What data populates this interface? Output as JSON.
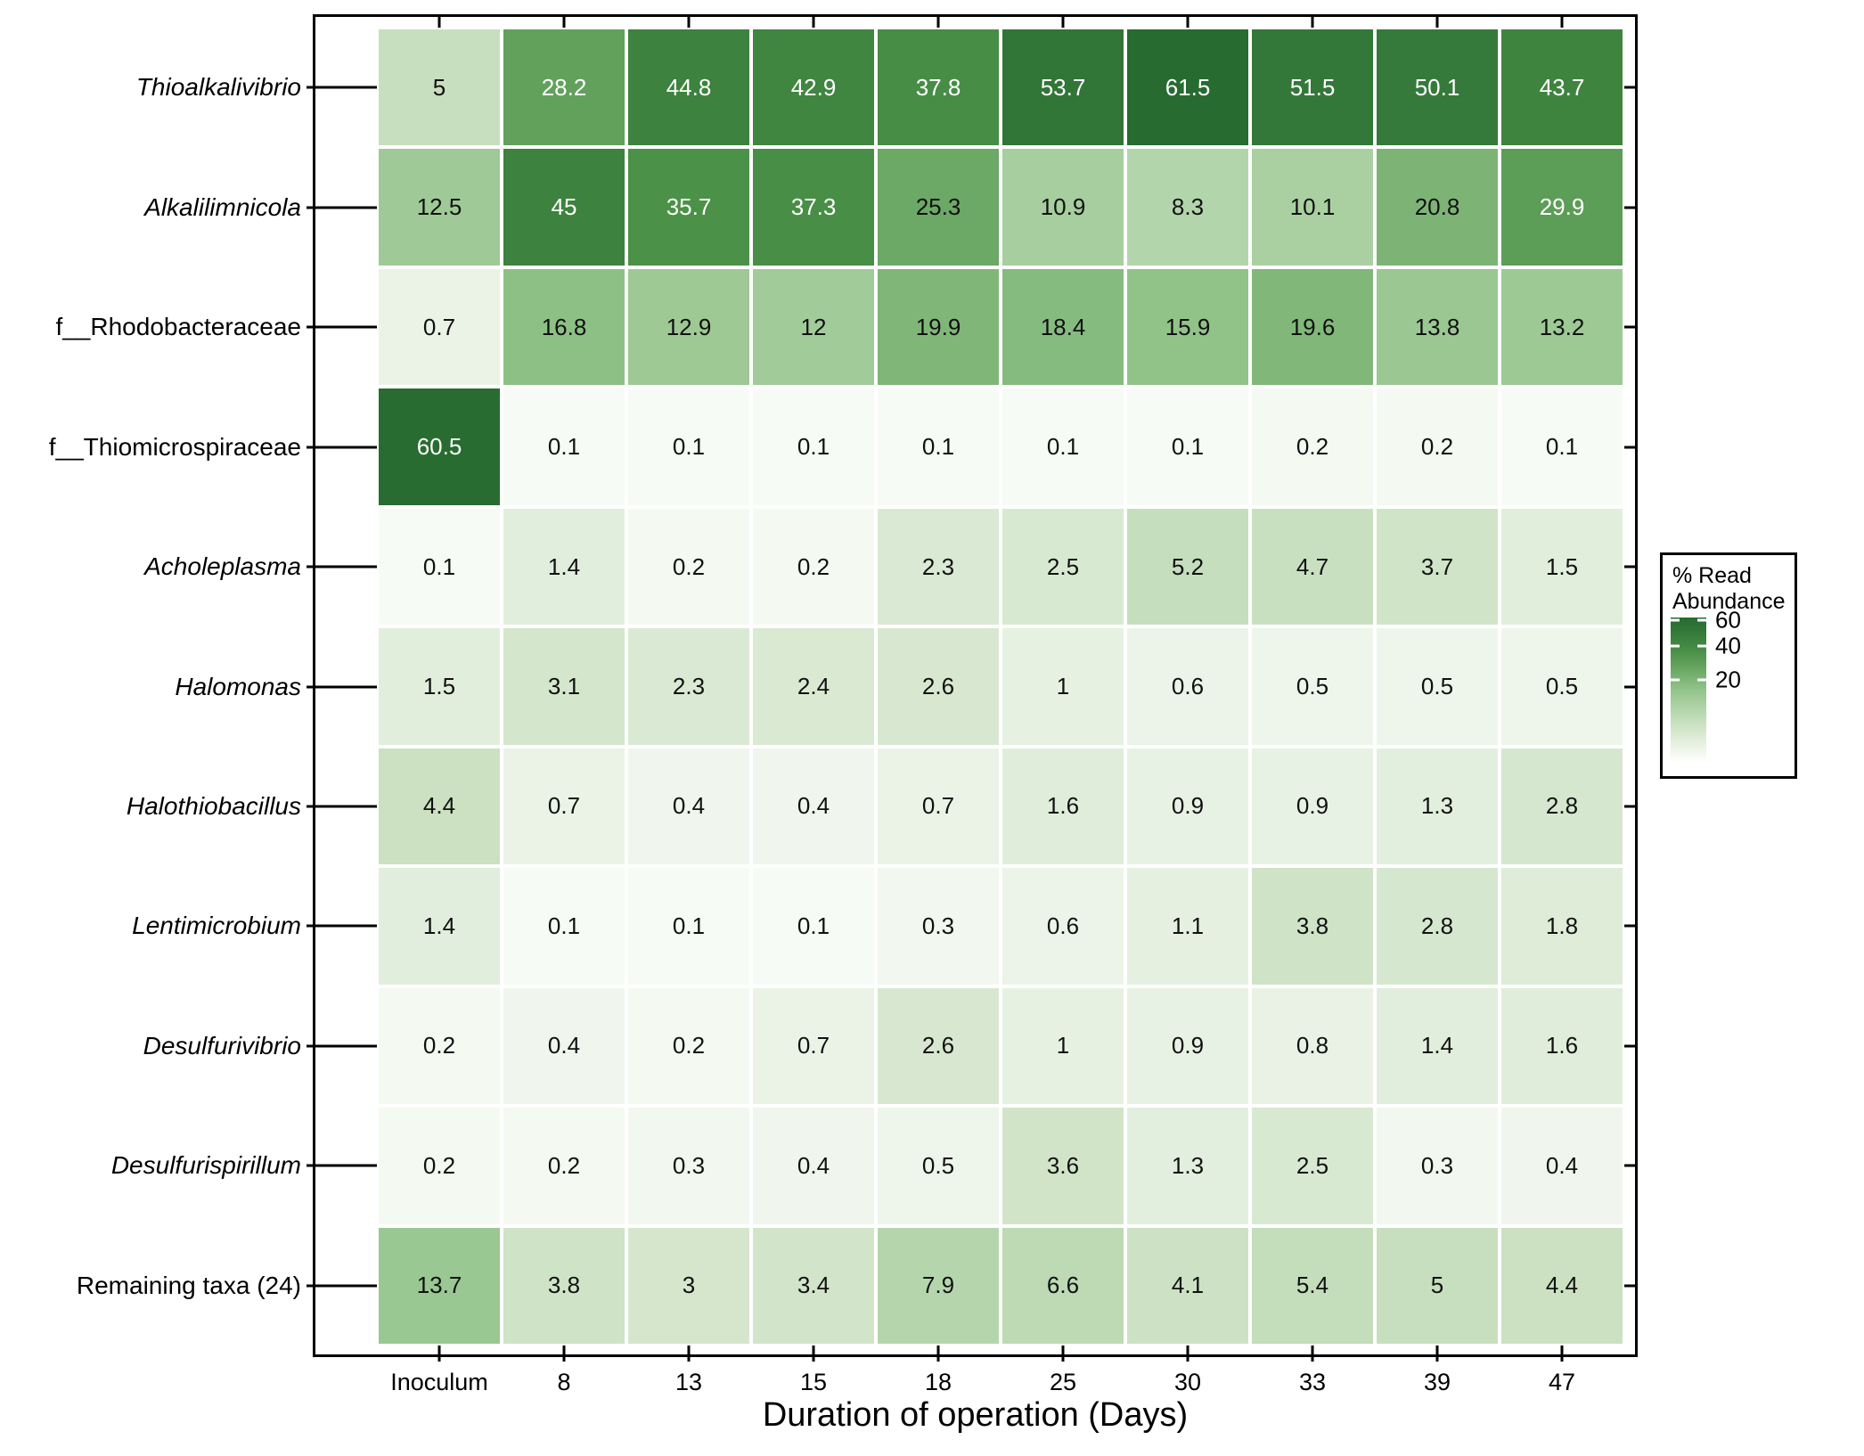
{
  "chart_data": {
    "type": "heatmap",
    "title": "",
    "xlabel": "Duration of operation (Days)",
    "ylabel": "",
    "value_unit": "% Read Abundance",
    "columns": [
      "Inoculum",
      "8",
      "13",
      "15",
      "18",
      "25",
      "30",
      "33",
      "39",
      "47"
    ],
    "rows": [
      {
        "label": "Thioalkalivibrio",
        "italic": true
      },
      {
        "label": "Alkalilimnicola",
        "italic": true
      },
      {
        "label": "f__Rhodobacteraceae",
        "italic": false
      },
      {
        "label": "f__Thiomicrospiraceae",
        "italic": false
      },
      {
        "label": "Acholeplasma",
        "italic": true
      },
      {
        "label": "Halomonas",
        "italic": true
      },
      {
        "label": "Halothiobacillus",
        "italic": true
      },
      {
        "label": "Lentimicrobium",
        "italic": true
      },
      {
        "label": "Desulfurivibrio",
        "italic": true
      },
      {
        "label": "Desulfurispirillum",
        "italic": true
      },
      {
        "label": "Remaining taxa (24)",
        "italic": false
      }
    ],
    "values": [
      [
        5,
        28.2,
        44.8,
        42.9,
        37.8,
        53.7,
        61.5,
        51.5,
        50.1,
        43.7
      ],
      [
        12.5,
        45,
        35.7,
        37.3,
        25.3,
        10.9,
        8.3,
        10.1,
        20.8,
        29.9
      ],
      [
        0.7,
        16.8,
        12.9,
        12,
        19.9,
        18.4,
        15.9,
        19.6,
        13.8,
        13.2
      ],
      [
        60.5,
        0.1,
        0.1,
        0.1,
        0.1,
        0.1,
        0.1,
        0.2,
        0.2,
        0.1
      ],
      [
        0.1,
        1.4,
        0.2,
        0.2,
        2.3,
        2.5,
        5.2,
        4.7,
        3.7,
        1.5
      ],
      [
        1.5,
        3.1,
        2.3,
        2.4,
        2.6,
        1,
        0.6,
        0.5,
        0.5,
        0.5
      ],
      [
        4.4,
        0.7,
        0.4,
        0.4,
        0.7,
        1.6,
        0.9,
        0.9,
        1.3,
        2.8
      ],
      [
        1.4,
        0.1,
        0.1,
        0.1,
        0.3,
        0.6,
        1.1,
        3.8,
        2.8,
        1.8
      ],
      [
        0.2,
        0.4,
        0.2,
        0.7,
        2.6,
        1,
        0.9,
        0.8,
        1.4,
        1.6
      ],
      [
        0.2,
        0.2,
        0.3,
        0.4,
        0.5,
        3.6,
        1.3,
        2.5,
        0.3,
        0.4
      ],
      [
        13.7,
        3.8,
        3,
        3.4,
        7.9,
        6.6,
        4.1,
        5.4,
        5,
        4.4
      ]
    ],
    "color_scale": {
      "type": "sqrt",
      "vmax": 62,
      "ramp": [
        [
          0,
          "#ffffff"
        ],
        [
          0.25,
          "#cfe3c6"
        ],
        [
          0.5,
          "#93c48b"
        ],
        [
          0.75,
          "#4c9248"
        ],
        [
          1,
          "#266a30"
        ]
      ]
    },
    "legend_position": "right"
  },
  "legend": {
    "title": "% Read Abundance",
    "ticks": [
      60,
      40,
      20
    ]
  },
  "colors": {
    "background": "#ffffff",
    "axis": "#000000",
    "cell_text_dark": "#111111",
    "cell_text_light": "#ffffff",
    "white_text_threshold": 28,
    "heat_low": "#ffffff",
    "heat_high": "#266a30"
  }
}
